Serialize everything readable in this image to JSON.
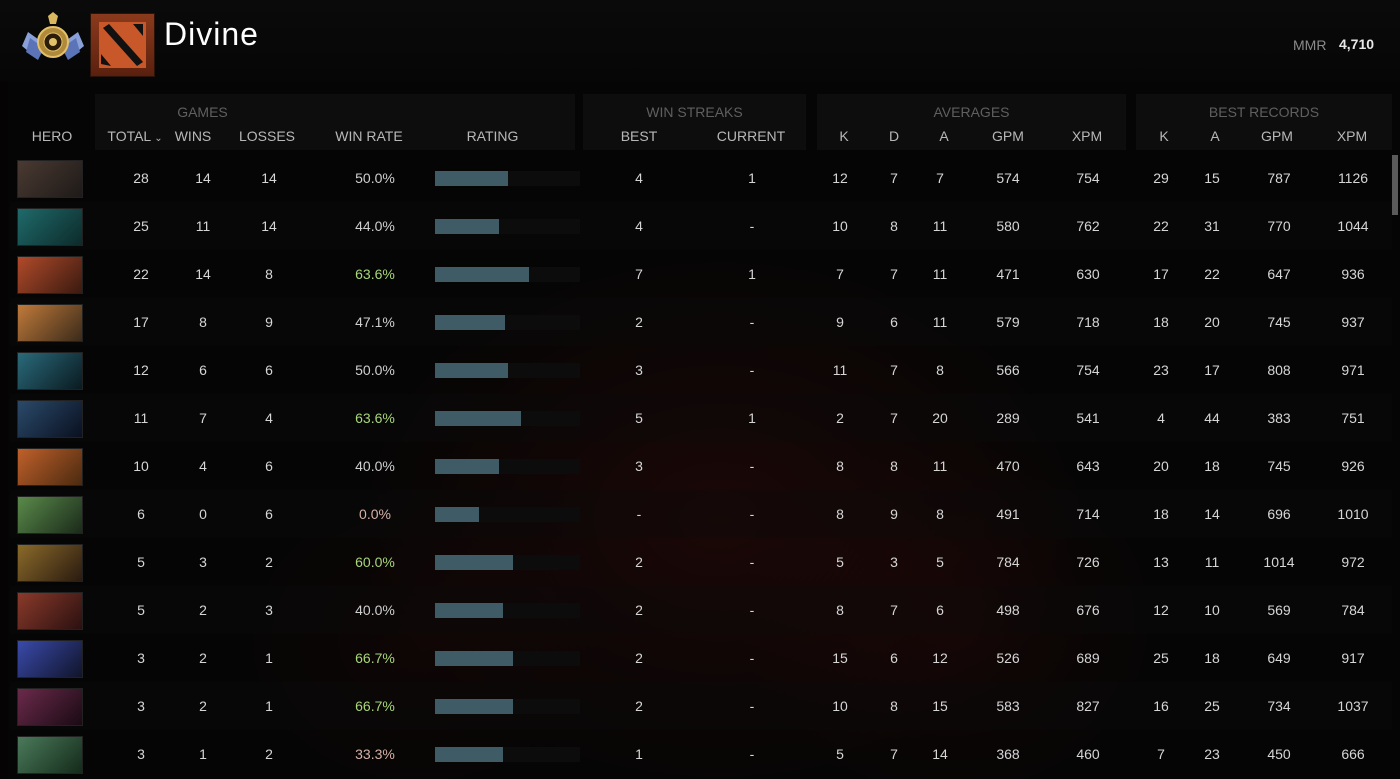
{
  "header": {
    "title": "Divine",
    "mmr_label": "MMR",
    "mmr_value": "4,710"
  },
  "groups": {
    "games": "GAMES",
    "win_streaks": "WIN STREAKS",
    "averages": "AVERAGES",
    "best_records": "BEST RECORDS"
  },
  "columns": {
    "hero": "HERO",
    "total": "TOTAL",
    "wins": "WINS",
    "losses": "LOSSES",
    "win_rate": "WIN RATE",
    "rating": "RATING",
    "best": "BEST",
    "current": "CURRENT",
    "avg_k": "K",
    "avg_d": "D",
    "avg_a": "A",
    "avg_gpm": "GPM",
    "avg_xpm": "XPM",
    "best_k": "K",
    "best_a": "A",
    "best_gpm": "GPM",
    "best_xpm": "XPM"
  },
  "sort_icon": "chevron-down-icon",
  "colors": {
    "rating_bar": "#3f5b66",
    "winrate_good": "#a8d67a",
    "winrate_bad": "#d7b1a8"
  },
  "rows": [
    {
      "portrait": [
        "#4a3a32",
        "#1e1a18"
      ],
      "total": "28",
      "wins": "14",
      "losses": "14",
      "win_rate": "50.0%",
      "rating": 0.5,
      "best": "4",
      "current": "1",
      "k": "12",
      "d": "7",
      "a": "7",
      "gpm": "574",
      "xpm": "754",
      "bk": "29",
      "ba": "15",
      "bgpm": "787",
      "bxpm": "1126"
    },
    {
      "portrait": [
        "#1f6a6a",
        "#0d2a2a"
      ],
      "total": "25",
      "wins": "11",
      "losses": "14",
      "win_rate": "44.0%",
      "rating": 0.44,
      "best": "4",
      "current": "-",
      "k": "10",
      "d": "8",
      "a": "11",
      "gpm": "580",
      "xpm": "762",
      "bk": "22",
      "ba": "31",
      "bgpm": "770",
      "bxpm": "1044"
    },
    {
      "portrait": [
        "#b04a2a",
        "#3a1a10"
      ],
      "total": "22",
      "wins": "14",
      "losses": "8",
      "win_rate": "63.6%",
      "rating": 0.65,
      "best": "7",
      "current": "1",
      "k": "7",
      "d": "7",
      "a": "11",
      "gpm": "471",
      "xpm": "630",
      "bk": "17",
      "ba": "22",
      "bgpm": "647",
      "bxpm": "936"
    },
    {
      "portrait": [
        "#c07a3a",
        "#3a2a1a"
      ],
      "total": "17",
      "wins": "8",
      "losses": "9",
      "win_rate": "47.1%",
      "rating": 0.48,
      "best": "2",
      "current": "-",
      "k": "9",
      "d": "6",
      "a": "11",
      "gpm": "579",
      "xpm": "718",
      "bk": "18",
      "ba": "20",
      "bgpm": "745",
      "bxpm": "937"
    },
    {
      "portrait": [
        "#2a6a7a",
        "#0a1a20"
      ],
      "total": "12",
      "wins": "6",
      "losses": "6",
      "win_rate": "50.0%",
      "rating": 0.5,
      "best": "3",
      "current": "-",
      "k": "11",
      "d": "7",
      "a": "8",
      "gpm": "566",
      "xpm": "754",
      "bk": "23",
      "ba": "17",
      "bgpm": "808",
      "bxpm": "971"
    },
    {
      "portrait": [
        "#2a4a6a",
        "#0a1020"
      ],
      "total": "11",
      "wins": "7",
      "losses": "4",
      "win_rate": "63.6%",
      "rating": 0.59,
      "best": "5",
      "current": "1",
      "k": "2",
      "d": "7",
      "a": "20",
      "gpm": "289",
      "xpm": "541",
      "bk": "4",
      "ba": "44",
      "bgpm": "383",
      "bxpm": "751"
    },
    {
      "portrait": [
        "#c0602a",
        "#4a2a10"
      ],
      "total": "10",
      "wins": "4",
      "losses": "6",
      "win_rate": "40.0%",
      "rating": 0.44,
      "best": "3",
      "current": "-",
      "k": "8",
      "d": "8",
      "a": "11",
      "gpm": "470",
      "xpm": "643",
      "bk": "20",
      "ba": "18",
      "bgpm": "745",
      "bxpm": "926"
    },
    {
      "portrait": [
        "#5a8a4a",
        "#1a2a1a"
      ],
      "total": "6",
      "wins": "0",
      "losses": "6",
      "win_rate": "0.0%",
      "rating": 0.3,
      "best": "-",
      "current": "-",
      "k": "8",
      "d": "9",
      "a": "8",
      "gpm": "491",
      "xpm": "714",
      "bk": "18",
      "ba": "14",
      "bgpm": "696",
      "bxpm": "1010"
    },
    {
      "portrait": [
        "#8a6a2a",
        "#2a1a10"
      ],
      "total": "5",
      "wins": "3",
      "losses": "2",
      "win_rate": "60.0%",
      "rating": 0.54,
      "best": "2",
      "current": "-",
      "k": "5",
      "d": "3",
      "a": "5",
      "gpm": "784",
      "xpm": "726",
      "bk": "13",
      "ba": "11",
      "bgpm": "1014",
      "bxpm": "972"
    },
    {
      "portrait": [
        "#8a3a2a",
        "#2a1010"
      ],
      "total": "5",
      "wins": "2",
      "losses": "3",
      "win_rate": "40.0%",
      "rating": 0.47,
      "best": "2",
      "current": "-",
      "k": "8",
      "d": "7",
      "a": "6",
      "gpm": "498",
      "xpm": "676",
      "bk": "12",
      "ba": "10",
      "bgpm": "569",
      "bxpm": "784"
    },
    {
      "portrait": [
        "#3a4aaa",
        "#10142a"
      ],
      "total": "3",
      "wins": "2",
      "losses": "1",
      "win_rate": "66.7%",
      "rating": 0.54,
      "best": "2",
      "current": "-",
      "k": "15",
      "d": "6",
      "a": "12",
      "gpm": "526",
      "xpm": "689",
      "bk": "25",
      "ba": "18",
      "bgpm": "649",
      "bxpm": "917"
    },
    {
      "portrait": [
        "#6a2a4a",
        "#1a0a14"
      ],
      "total": "3",
      "wins": "2",
      "losses": "1",
      "win_rate": "66.7%",
      "rating": 0.54,
      "best": "2",
      "current": "-",
      "k": "10",
      "d": "8",
      "a": "15",
      "gpm": "583",
      "xpm": "827",
      "bk": "16",
      "ba": "25",
      "bgpm": "734",
      "bxpm": "1037"
    },
    {
      "portrait": [
        "#4a7a5a",
        "#142a1a"
      ],
      "total": "3",
      "wins": "1",
      "losses": "2",
      "win_rate": "33.3%",
      "rating": 0.47,
      "best": "1",
      "current": "-",
      "k": "5",
      "d": "7",
      "a": "14",
      "gpm": "368",
      "xpm": "460",
      "bk": "7",
      "ba": "23",
      "bgpm": "450",
      "bxpm": "666"
    }
  ]
}
